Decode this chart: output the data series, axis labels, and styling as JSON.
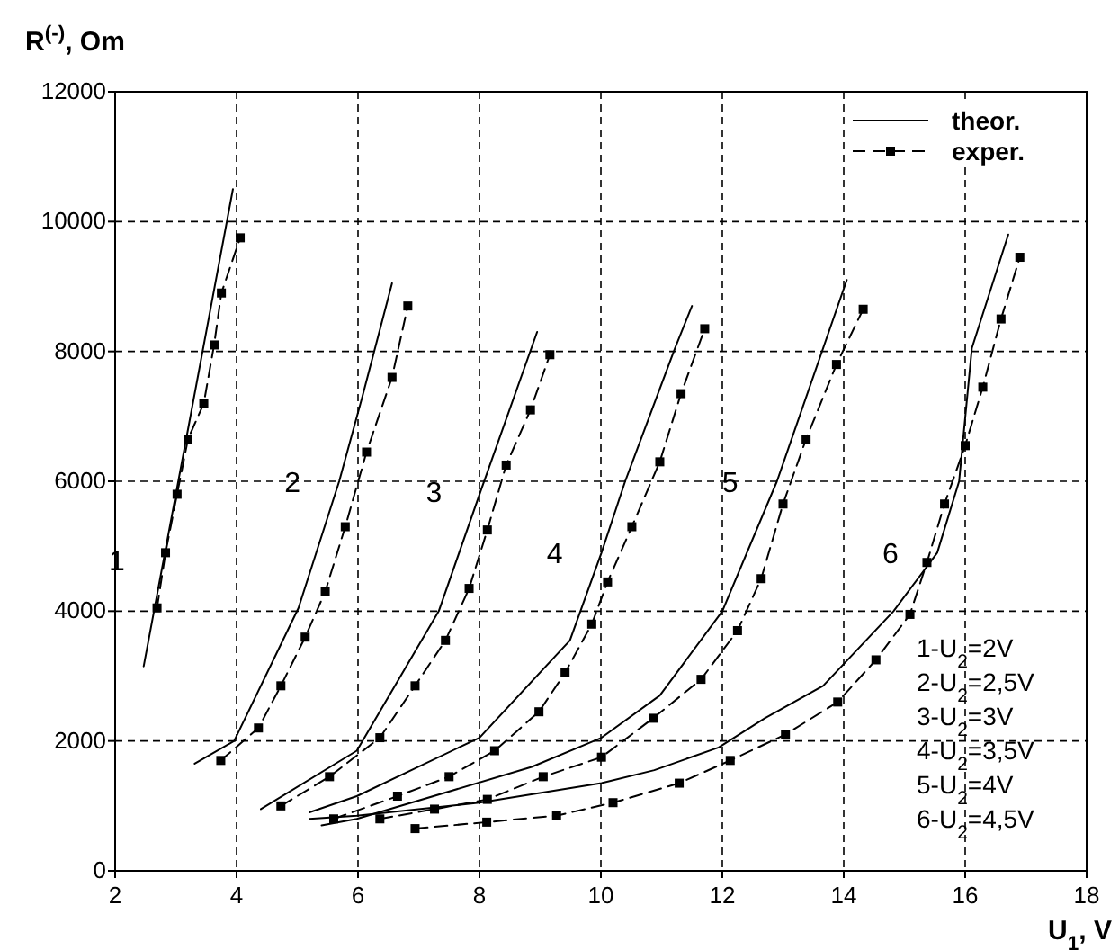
{
  "chart_data": {
    "type": "line",
    "ylabel": "R$^{(-)}$, Om",
    "xlabel": "U$_{1}$, V",
    "xlim": [
      2,
      18
    ],
    "xticks": [
      2,
      4,
      6,
      8,
      10,
      12,
      14,
      16,
      18
    ],
    "ylim": [
      0,
      12000
    ],
    "yticks": [
      0,
      2000,
      4000,
      6000,
      8000,
      10000,
      12000
    ],
    "grid": true,
    "legend": "top right",
    "series": [
      {
        "name": "theor.",
        "color": "#000000",
        "line_style": "solid",
        "marker": "none",
        "x": [
          2.47,
          2.8,
          3.2,
          3.6,
          3.94
        ],
        "values": [
          3150,
          4800,
          6800,
          8800,
          10500
        ]
      },
      {
        "name": "exper.",
        "color": "#000000",
        "line_style": "dashed",
        "marker": "square",
        "x": [
          2.69,
          2.83,
          3.02,
          3.2,
          3.46,
          3.63,
          3.75,
          4.06
        ],
        "values": [
          4050,
          4900,
          5800,
          6650,
          7200,
          8100,
          8900,
          9750
        ]
      },
      {
        "color": "#000000",
        "line_style": "solid",
        "marker": "none",
        "x": [
          3.31,
          3.96,
          5.02,
          5.69,
          6.07,
          6.56
        ],
        "values": [
          1650,
          2000,
          4050,
          6000,
          7300,
          9050
        ]
      },
      {
        "color": "#000000",
        "line_style": "dashed",
        "marker": "square",
        "x": [
          3.74,
          4.36,
          4.73,
          5.13,
          5.46,
          5.79,
          6.14,
          6.56,
          6.82
        ],
        "values": [
          1700,
          2200,
          2850,
          3600,
          4300,
          5300,
          6450,
          7600,
          8700
        ]
      },
      {
        "color": "#000000",
        "line_style": "solid",
        "marker": "none",
        "x": [
          4.4,
          5.98,
          7.33,
          8.02,
          8.95
        ],
        "values": [
          950,
          1850,
          4000,
          5850,
          8300
        ]
      },
      {
        "color": "#000000",
        "line_style": "dashed",
        "marker": "square",
        "x": [
          4.73,
          5.53,
          6.36,
          6.94,
          7.44,
          7.83,
          8.13,
          8.44,
          8.84,
          9.16
        ],
        "values": [
          1000,
          1450,
          2050,
          2850,
          3550,
          4350,
          5250,
          6250,
          7100,
          7950
        ]
      },
      {
        "color": "#000000",
        "line_style": "solid",
        "marker": "none",
        "x": [
          5.2,
          5.98,
          8.0,
          9.49,
          10.01,
          10.4,
          11.22,
          11.5
        ],
        "values": [
          900,
          1150,
          2050,
          3550,
          4900,
          6000,
          8050,
          8700
        ]
      },
      {
        "color": "#000000",
        "line_style": "dashed",
        "marker": "square",
        "x": [
          5.6,
          6.65,
          7.5,
          8.25,
          8.98,
          9.41,
          9.85,
          10.11,
          10.51,
          10.97,
          11.32,
          11.71
        ],
        "values": [
          800,
          1150,
          1450,
          1850,
          2450,
          3050,
          3800,
          4450,
          5300,
          6300,
          7350,
          8350
        ]
      },
      {
        "color": "#000000",
        "line_style": "solid",
        "marker": "none",
        "x": [
          5.4,
          5.98,
          8.86,
          10.01,
          10.97,
          12.0,
          12.9,
          14.05
        ],
        "values": [
          700,
          800,
          1600,
          2050,
          2700,
          4000,
          6000,
          9100
        ]
      },
      {
        "color": "#000000",
        "line_style": "dashed",
        "marker": "square",
        "x": [
          6.36,
          7.26,
          8.13,
          9.05,
          10.01,
          10.86,
          11.65,
          12.25,
          12.64,
          13.0,
          13.38,
          13.88,
          14.32
        ],
        "values": [
          800,
          950,
          1100,
          1450,
          1750,
          2350,
          2950,
          3700,
          4500,
          5650,
          6650,
          7800,
          8650
        ]
      },
      {
        "color": "#000000",
        "line_style": "solid",
        "marker": "none",
        "x": [
          5.2,
          5.98,
          8.0,
          10.01,
          10.88,
          11.94,
          12.7,
          13.66,
          14.82,
          15.54,
          15.9,
          16.11,
          16.71
        ],
        "values": [
          800,
          850,
          1050,
          1350,
          1550,
          1900,
          2350,
          2850,
          4000,
          4900,
          6000,
          8050,
          9800
        ]
      },
      {
        "color": "#000000",
        "line_style": "dashed",
        "marker": "square",
        "x": [
          6.94,
          8.12,
          9.27,
          10.2,
          11.29,
          12.13,
          13.04,
          13.9,
          14.53,
          15.09,
          15.37,
          15.66,
          16.0,
          16.29,
          16.59,
          16.9
        ],
        "values": [
          650,
          750,
          850,
          1050,
          1350,
          1700,
          2100,
          2600,
          3250,
          3950,
          4750,
          5650,
          6550,
          7450,
          8500,
          9450
        ]
      }
    ],
    "annotations": [
      "1",
      "2",
      "3",
      "4",
      "5",
      "6",
      "1-U$_{2}$=2V",
      "2-U$_{2}$=2,5V",
      "3-U$_{2}$=3V",
      "4-U$_{2}$=3,5V",
      "5-U$_{2}$=4V",
      "6-U$_{2}$=4,5V"
    ]
  }
}
